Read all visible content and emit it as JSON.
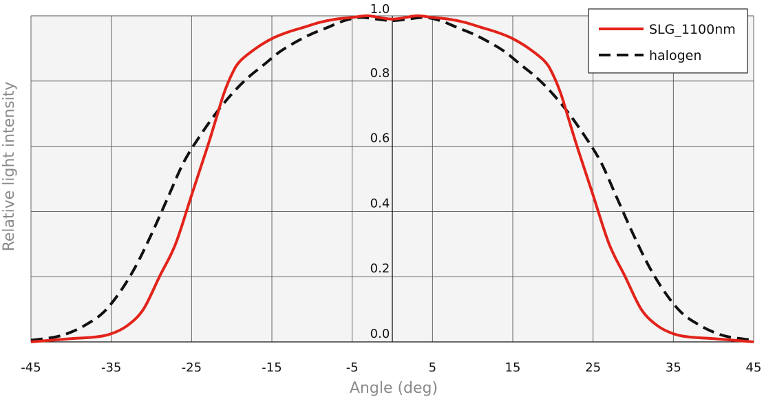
{
  "chart_data": {
    "type": "line",
    "xlabel": "Angle (deg)",
    "ylabel": "Relative light intensity",
    "xlim": [
      -45,
      45
    ],
    "ylim": [
      0,
      1
    ],
    "x_ticks": [
      -45,
      -35,
      -25,
      -15,
      -5,
      5,
      15,
      25,
      35,
      45
    ],
    "x_tick_labels": [
      "-45",
      "-35",
      "-25",
      "-15",
      "-5",
      "5",
      "15",
      "25",
      "35",
      "45"
    ],
    "y_ticks": [
      0,
      0.2,
      0.4,
      0.6,
      0.8,
      1.0
    ],
    "y_tick_labels": [
      "0.0",
      "0.2",
      "0.4",
      "0.6",
      "0.8",
      "1.0"
    ],
    "grid": true,
    "legend_position": "top-right",
    "series": [
      {
        "name": "SLG_1100nm",
        "color": "#e2231a",
        "style": "solid",
        "x": [
          -45,
          -40,
          -37,
          -35,
          -33,
          -31,
          -29,
          -27,
          -25,
          -23,
          -22,
          -21,
          -20,
          -19,
          -17,
          -15,
          -13,
          -11,
          -9,
          -7,
          -5,
          -3,
          0,
          3,
          5,
          7,
          9,
          11,
          13,
          15,
          17,
          19,
          20,
          21,
          22,
          23,
          25,
          27,
          29,
          31,
          33,
          35,
          37,
          40,
          45
        ],
        "y": [
          0.0,
          0.01,
          0.015,
          0.025,
          0.05,
          0.1,
          0.2,
          0.3,
          0.45,
          0.6,
          0.68,
          0.76,
          0.82,
          0.86,
          0.9,
          0.93,
          0.95,
          0.965,
          0.98,
          0.99,
          0.995,
          1.0,
          0.99,
          1.0,
          0.995,
          0.99,
          0.98,
          0.965,
          0.95,
          0.93,
          0.9,
          0.86,
          0.82,
          0.76,
          0.68,
          0.6,
          0.45,
          0.3,
          0.2,
          0.1,
          0.05,
          0.025,
          0.015,
          0.01,
          0.0
        ]
      },
      {
        "name": "halogen",
        "color": "#111111",
        "style": "dashed",
        "x": [
          -45,
          -42,
          -40,
          -38,
          -36,
          -34,
          -32,
          -30,
          -28,
          -26,
          -24,
          -22,
          -20,
          -18,
          -16,
          -14,
          -12,
          -10,
          -8,
          -6,
          -4,
          -2,
          0,
          2,
          4,
          6,
          8,
          10,
          12,
          14,
          16,
          18,
          20,
          22,
          24,
          26,
          28,
          30,
          32,
          34,
          36,
          38,
          40,
          42,
          45
        ],
        "y": [
          0.005,
          0.015,
          0.03,
          0.055,
          0.09,
          0.15,
          0.23,
          0.33,
          0.44,
          0.55,
          0.63,
          0.7,
          0.76,
          0.81,
          0.85,
          0.89,
          0.92,
          0.945,
          0.965,
          0.985,
          0.995,
          0.99,
          0.985,
          0.99,
          0.995,
          0.985,
          0.965,
          0.945,
          0.92,
          0.89,
          0.85,
          0.81,
          0.76,
          0.7,
          0.63,
          0.55,
          0.44,
          0.33,
          0.23,
          0.15,
          0.09,
          0.055,
          0.03,
          0.015,
          0.005
        ]
      }
    ]
  }
}
